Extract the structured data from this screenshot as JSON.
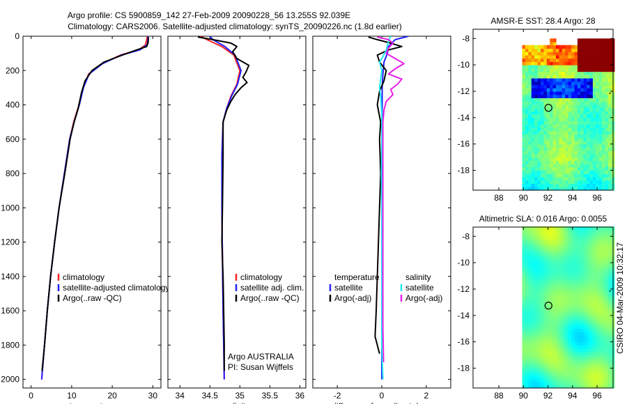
{
  "title": {
    "line1": "Argo profile: CS 5900859_142 27-Feb-2009 20090228_56 13.255S 92.039E",
    "line2": "Climatology: CARS2006. Satellite-adjusted climatology: synTS_20090226.nc (1.8d earlier)"
  },
  "side_text": "CSIRO 04-Mar-2009 10:32:17",
  "colors": {
    "climatology": "#ff2020",
    "satellite": "#2020ff",
    "argo": "#000000",
    "cyan": "#20e8f0",
    "magenta": "#e820e8"
  },
  "chart_data": [
    {
      "id": "temperature",
      "type": "line",
      "xlabel": "temperature",
      "xlim": [
        -2,
        32
      ],
      "xticks": [
        0,
        10,
        20,
        30
      ],
      "ylim": [
        2050,
        0
      ],
      "yticks": [
        0,
        200,
        400,
        600,
        800,
        1000,
        1200,
        1400,
        1600,
        1800,
        2000
      ],
      "legend": [
        "climatology",
        "satellite-adjusted climatology",
        "Argo(..raw -QC)"
      ],
      "series": [
        {
          "name": "climatology",
          "color": "climatology",
          "points": [
            [
              28.6,
              0
            ],
            [
              28.5,
              20
            ],
            [
              28.2,
              50
            ],
            [
              26.5,
              80
            ],
            [
              22,
              110
            ],
            [
              17.5,
              160
            ],
            [
              14.2,
              220
            ],
            [
              12.8,
              300
            ],
            [
              11.8,
              400
            ],
            [
              10.5,
              500
            ],
            [
              9.5,
              600
            ],
            [
              8.2,
              800
            ],
            [
              6.9,
              1000
            ],
            [
              5.8,
              1200
            ],
            [
              4.8,
              1400
            ],
            [
              4.0,
              1600
            ],
            [
              3.3,
              1800
            ],
            [
              2.6,
              2000
            ]
          ]
        },
        {
          "name": "satellite-adjusted climatology",
          "color": "satellite",
          "points": [
            [
              28.8,
              0
            ],
            [
              28.8,
              20
            ],
            [
              28.6,
              50
            ],
            [
              26.8,
              80
            ],
            [
              22.2,
              110
            ],
            [
              17.6,
              160
            ],
            [
              14.3,
              220
            ],
            [
              12.9,
              300
            ],
            [
              11.9,
              400
            ],
            [
              10.6,
              500
            ],
            [
              9.5,
              600
            ],
            [
              8.2,
              800
            ],
            [
              6.9,
              1000
            ],
            [
              5.8,
              1200
            ],
            [
              4.8,
              1400
            ],
            [
              4.0,
              1600
            ],
            [
              3.3,
              1800
            ],
            [
              2.6,
              2000
            ]
          ]
        },
        {
          "name": "Argo(..raw -QC)",
          "color": "argo",
          "points": [
            [
              28.9,
              5
            ],
            [
              28.9,
              20
            ],
            [
              28.8,
              40
            ],
            [
              28.5,
              60
            ],
            [
              26,
              80
            ],
            [
              22.5,
              110
            ],
            [
              18,
              150
            ],
            [
              15,
              200
            ],
            [
              13.3,
              260
            ],
            [
              12.4,
              330
            ],
            [
              11.6,
              420
            ],
            [
              10.6,
              500
            ],
            [
              9.6,
              600
            ],
            [
              8.3,
              800
            ],
            [
              6.9,
              1000
            ],
            [
              5.8,
              1200
            ],
            [
              4.8,
              1400
            ],
            [
              4.0,
              1600
            ],
            [
              3.3,
              1800
            ],
            [
              2.7,
              1950
            ]
          ]
        }
      ]
    },
    {
      "id": "salinity",
      "type": "line",
      "xlabel": "salinity",
      "xlim": [
        33.8,
        36.1
      ],
      "xticks": [
        34,
        34.5,
        35,
        35.5,
        36
      ],
      "ylim": [
        2050,
        0
      ],
      "legend": [
        "climatology",
        "satellite adj. clim.",
        "Argo(..raw -QC)"
      ],
      "annotations": [
        "Argo AUSTRALIA",
        "PI: Susan Wijffels"
      ],
      "series": [
        {
          "name": "climatology",
          "color": "climatology",
          "points": [
            [
              34.35,
              0
            ],
            [
              34.45,
              20
            ],
            [
              34.7,
              60
            ],
            [
              34.9,
              110
            ],
            [
              35.0,
              200
            ],
            [
              34.95,
              280
            ],
            [
              34.85,
              350
            ],
            [
              34.78,
              420
            ],
            [
              34.72,
              500
            ],
            [
              34.7,
              700
            ],
            [
              34.7,
              1000
            ],
            [
              34.71,
              1300
            ],
            [
              34.72,
              1600
            ],
            [
              34.73,
              1800
            ],
            [
              34.74,
              2000
            ]
          ]
        },
        {
          "name": "satellite adj. clim.",
          "color": "satellite",
          "points": [
            [
              34.5,
              0
            ],
            [
              34.55,
              20
            ],
            [
              34.75,
              60
            ],
            [
              34.92,
              110
            ],
            [
              35.02,
              200
            ],
            [
              34.96,
              280
            ],
            [
              34.86,
              350
            ],
            [
              34.78,
              420
            ],
            [
              34.72,
              500
            ],
            [
              34.7,
              700
            ],
            [
              34.7,
              1000
            ],
            [
              34.71,
              1300
            ],
            [
              34.72,
              1600
            ],
            [
              34.73,
              1800
            ],
            [
              34.74,
              2000
            ]
          ]
        },
        {
          "name": "Argo(..raw -QC)",
          "color": "argo",
          "points": [
            [
              34.3,
              5
            ],
            [
              34.55,
              20
            ],
            [
              34.85,
              40
            ],
            [
              34.95,
              60
            ],
            [
              34.88,
              90
            ],
            [
              34.95,
              130
            ],
            [
              35.15,
              170
            ],
            [
              35.1,
              210
            ],
            [
              35.05,
              240
            ],
            [
              35.12,
              270
            ],
            [
              35.02,
              300
            ],
            [
              34.92,
              340
            ],
            [
              34.85,
              380
            ],
            [
              34.78,
              430
            ],
            [
              34.72,
              500
            ],
            [
              34.72,
              700
            ],
            [
              34.71,
              1000
            ],
            [
              34.7,
              1200
            ],
            [
              34.72,
              1400
            ],
            [
              34.73,
              1600
            ],
            [
              34.74,
              1800
            ],
            [
              34.74,
              1950
            ]
          ]
        }
      ]
    },
    {
      "id": "difference",
      "type": "line",
      "xlabel": "difference from climatology",
      "xlim": [
        -3.1,
        3.1
      ],
      "xticks": [
        -2,
        0,
        2
      ],
      "ylim": [
        2050,
        0
      ],
      "legend_left": [
        "temperature",
        "satellite",
        "Argo(-adj)"
      ],
      "legend_right": [
        "salinity",
        "satellite",
        "Argo(-adj)"
      ],
      "series": [
        {
          "name": "temperature satellite",
          "color": "satellite",
          "points": [
            [
              1.2,
              0
            ],
            [
              0.6,
              20
            ],
            [
              0.3,
              60
            ],
            [
              0.25,
              100
            ],
            [
              0.1,
              150
            ],
            [
              0.05,
              220
            ],
            [
              0.02,
              300
            ],
            [
              0.02,
              500
            ],
            [
              0,
              800
            ],
            [
              0,
              1200
            ],
            [
              0,
              1600
            ],
            [
              0,
              2000
            ]
          ]
        },
        {
          "name": "temperature Argo(-adj)",
          "color": "argo",
          "points": [
            [
              -0.6,
              5
            ],
            [
              -0.2,
              20
            ],
            [
              0.4,
              40
            ],
            [
              0.9,
              60
            ],
            [
              0.3,
              80
            ],
            [
              -0.2,
              110
            ],
            [
              -0.1,
              150
            ],
            [
              0.2,
              200
            ],
            [
              0.1,
              260
            ],
            [
              -0.1,
              320
            ],
            [
              -0.2,
              400
            ],
            [
              -0.05,
              500
            ],
            [
              -0.1,
              600
            ],
            [
              -0.05,
              800
            ],
            [
              -0.1,
              1000
            ],
            [
              -0.15,
              1200
            ],
            [
              -0.2,
              1400
            ],
            [
              -0.25,
              1600
            ],
            [
              -0.3,
              1750
            ],
            [
              -0.1,
              1850
            ]
          ]
        },
        {
          "name": "salinity satellite",
          "color": "cyan",
          "points": [
            [
              0.4,
              0
            ],
            [
              0.3,
              30
            ],
            [
              0.2,
              80
            ],
            [
              0.05,
              120
            ],
            [
              -0.1,
              150
            ],
            [
              0,
              200
            ],
            [
              -0.05,
              250
            ],
            [
              -0.1,
              300
            ],
            [
              -0.05,
              350
            ],
            [
              0,
              450
            ],
            [
              0,
              600
            ],
            [
              -0.02,
              800
            ],
            [
              0,
              1000
            ],
            [
              0,
              1300
            ],
            [
              0,
              1600
            ],
            [
              0,
              1800
            ],
            [
              0.05,
              2000
            ]
          ]
        },
        {
          "name": "salinity Argo(-adj)",
          "color": "magenta",
          "points": [
            [
              -0.2,
              5
            ],
            [
              0.3,
              20
            ],
            [
              0.5,
              40
            ],
            [
              0.3,
              70
            ],
            [
              0.2,
              100
            ],
            [
              0.6,
              130
            ],
            [
              1.0,
              160
            ],
            [
              0.6,
              190
            ],
            [
              0.3,
              220
            ],
            [
              0.9,
              250
            ],
            [
              0.7,
              280
            ],
            [
              0.4,
              310
            ],
            [
              0.5,
              340
            ],
            [
              0.2,
              380
            ],
            [
              0.1,
              430
            ],
            [
              0.05,
              500
            ],
            [
              0.05,
              700
            ],
            [
              0.05,
              1000
            ],
            [
              0.05,
              1300
            ],
            [
              0.05,
              1500
            ],
            [
              0.05,
              1700
            ],
            [
              0.08,
              1900
            ]
          ]
        }
      ]
    },
    {
      "id": "sst_map",
      "type": "heatmap",
      "title": "AMSR-E SST: 28.4 Argo: 28",
      "xlim": [
        85.9,
        97.3
      ],
      "xticks": [
        88,
        90,
        92,
        94,
        96
      ],
      "ylim": [
        -19.5,
        -7.3
      ],
      "yticks": [
        -8,
        -10,
        -12,
        -14,
        -16,
        -18
      ],
      "data_lon_start": 89.9,
      "argo_position": [
        92.039,
        -13.255
      ]
    },
    {
      "id": "sla_map",
      "type": "heatmap",
      "title": "Altimetric SLA: 0.016 Argo: 0.0055",
      "xlim": [
        85.9,
        97.3
      ],
      "xticks": [
        88,
        90,
        92,
        94,
        96
      ],
      "ylim": [
        -19.5,
        -7.3
      ],
      "yticks": [
        -8,
        -10,
        -12,
        -14,
        -16,
        -18
      ],
      "data_lon_start": 89.9,
      "argo_position": [
        92.039,
        -13.255
      ]
    }
  ]
}
